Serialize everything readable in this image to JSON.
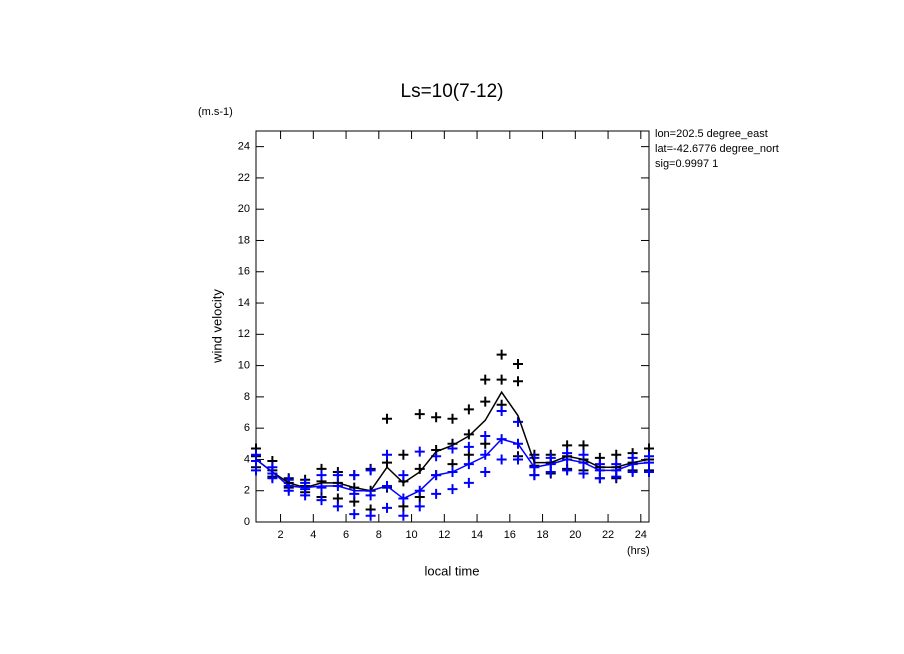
{
  "chart_data": {
    "type": "scatter",
    "title": "Ls=10(7-12)",
    "y_unit": "(m.s-1)",
    "y_label": "wind velocity",
    "x_label": "local time",
    "x_unit": "(hrs)",
    "annotations": [
      "lon=202.5 degree_east",
      "lat=-42.6776 degree_north",
      "sig=0.9997 1"
    ],
    "xlim": [
      0.5,
      24.5
    ],
    "ylim": [
      0,
      25
    ],
    "xticks": [
      2,
      4,
      6,
      8,
      10,
      12,
      14,
      16,
      18,
      20,
      22,
      24
    ],
    "yticks": [
      0,
      2,
      4,
      6,
      8,
      10,
      12,
      14,
      16,
      18,
      20,
      22,
      24
    ],
    "series": [
      {
        "mode": "markers",
        "color": "#000000",
        "x": [
          0.5,
          0.5,
          0.5,
          1.5,
          1.5,
          1.5,
          2.5,
          2.5,
          2.5,
          3.5,
          3.5,
          3.5,
          4.5,
          4.5,
          4.5,
          5.5,
          5.5,
          5.5,
          6.5,
          6.5,
          6.5,
          7.5,
          7.5,
          7.5,
          8.5,
          8.5,
          8.5,
          9.5,
          9.5,
          9.5,
          10.5,
          10.5,
          10.5,
          11.5,
          11.5,
          11.5,
          12.5,
          12.5,
          12.5,
          13.5,
          13.5,
          13.5,
          14.5,
          14.5,
          14.5,
          15.5,
          15.5,
          15.5,
          16.5,
          16.5,
          16.5,
          17.5,
          17.5,
          17.5,
          18.5,
          18.5,
          18.5,
          19.5,
          19.5,
          19.5,
          20.5,
          20.5,
          20.5,
          21.5,
          21.5,
          21.5,
          22.5,
          22.5,
          22.5,
          23.5,
          23.5,
          23.5,
          24.5,
          24.5,
          24.5
        ],
        "values": [
          3.5,
          4.2,
          4.7,
          2.9,
          3.3,
          3.9,
          2.2,
          2.5,
          2.8,
          1.9,
          2.3,
          2.7,
          1.6,
          2.6,
          3.4,
          1.5,
          2.5,
          3.2,
          1.3,
          2.2,
          3.0,
          0.8,
          2.0,
          3.4,
          2.2,
          3.8,
          6.6,
          1.0,
          2.6,
          4.3,
          1.6,
          3.4,
          6.9,
          3.0,
          4.6,
          6.7,
          3.7,
          5.0,
          6.6,
          4.3,
          5.6,
          7.2,
          5.0,
          7.7,
          9.1,
          7.5,
          9.1,
          10.7,
          4.2,
          9.0,
          10.1,
          3.0,
          3.6,
          4.3,
          3.1,
          3.8,
          4.3,
          3.4,
          4.2,
          4.9,
          3.3,
          4.0,
          4.9,
          2.8,
          3.5,
          4.1,
          2.8,
          3.5,
          4.3,
          3.3,
          3.8,
          4.4,
          3.3,
          4.0,
          4.7
        ]
      },
      {
        "mode": "markers",
        "color": "#0000ff",
        "x": [
          0.5,
          0.5,
          0.5,
          1.5,
          1.5,
          1.5,
          2.5,
          2.5,
          2.5,
          3.5,
          3.5,
          3.5,
          4.5,
          4.5,
          4.5,
          5.5,
          5.5,
          5.5,
          6.5,
          6.5,
          6.5,
          7.5,
          7.5,
          7.5,
          8.5,
          8.5,
          8.5,
          9.5,
          9.5,
          9.5,
          10.5,
          10.5,
          10.5,
          11.5,
          11.5,
          11.5,
          12.5,
          12.5,
          12.5,
          13.5,
          13.5,
          13.5,
          14.5,
          14.5,
          14.5,
          15.5,
          15.5,
          15.5,
          16.5,
          16.5,
          16.5,
          17.5,
          17.5,
          17.5,
          18.5,
          18.5,
          18.5,
          19.5,
          19.5,
          19.5,
          20.5,
          20.5,
          20.5,
          21.5,
          21.5,
          21.5,
          22.5,
          22.5,
          22.5,
          23.5,
          23.5,
          23.5,
          24.5,
          24.5,
          24.5
        ],
        "values": [
          3.3,
          3.9,
          4.3,
          2.8,
          3.1,
          3.5,
          2.0,
          2.3,
          2.7,
          1.7,
          2.1,
          2.5,
          1.4,
          2.2,
          3.0,
          1.0,
          2.3,
          3.0,
          0.5,
          1.8,
          3.0,
          0.4,
          1.7,
          3.3,
          0.9,
          2.3,
          4.3,
          0.4,
          1.5,
          3.0,
          1.0,
          2.0,
          4.5,
          1.8,
          3.0,
          4.2,
          2.1,
          3.2,
          4.7,
          2.5,
          3.7,
          4.8,
          3.2,
          4.3,
          5.5,
          4.0,
          5.3,
          7.1,
          4.0,
          5.0,
          6.4,
          3.0,
          3.5,
          4.1,
          3.2,
          3.7,
          4.1,
          3.3,
          4.0,
          4.4,
          3.1,
          3.8,
          4.3,
          2.8,
          3.3,
          3.7,
          2.9,
          3.3,
          3.7,
          3.2,
          3.7,
          4.1,
          3.2,
          3.8,
          4.2
        ]
      },
      {
        "mode": "line",
        "color": "#000000",
        "x": [
          0.5,
          1.5,
          2.5,
          3.5,
          4.5,
          5.5,
          6.5,
          7.5,
          8.5,
          9.5,
          10.5,
          11.5,
          12.5,
          13.5,
          14.5,
          15.5,
          16.5,
          17.5,
          18.5,
          19.5,
          20.5,
          21.5,
          22.5,
          23.5,
          24.5
        ],
        "values": [
          4.0,
          3.2,
          2.5,
          2.2,
          2.5,
          2.5,
          2.2,
          2.0,
          3.5,
          2.5,
          3.2,
          4.5,
          4.9,
          5.5,
          6.5,
          8.3,
          6.8,
          3.8,
          3.8,
          4.2,
          4.0,
          3.5,
          3.5,
          3.8,
          4.0
        ]
      },
      {
        "mode": "line",
        "color": "#0000ff",
        "x": [
          0.5,
          1.5,
          2.5,
          3.5,
          4.5,
          5.5,
          6.5,
          7.5,
          8.5,
          9.5,
          10.5,
          11.5,
          12.5,
          13.5,
          14.5,
          15.5,
          16.5,
          17.5,
          18.5,
          19.5,
          20.5,
          21.5,
          22.5,
          23.5,
          24.5
        ],
        "values": [
          4.0,
          3.2,
          2.3,
          2.2,
          2.3,
          2.3,
          2.0,
          2.0,
          2.3,
          1.5,
          2.0,
          3.0,
          3.2,
          3.7,
          4.2,
          5.3,
          5.0,
          3.5,
          3.7,
          4.0,
          3.8,
          3.3,
          3.3,
          3.7,
          3.8
        ]
      }
    ]
  }
}
